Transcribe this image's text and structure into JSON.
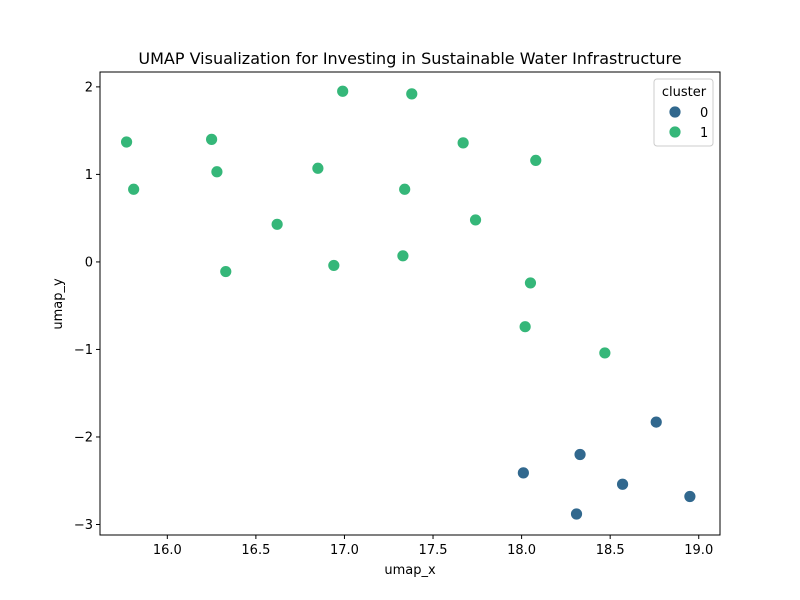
{
  "chart_data": {
    "type": "scatter",
    "title": "UMAP Visualization for Investing in Sustainable Water Infrastructure",
    "xlabel": "umap_x",
    "ylabel": "umap_y",
    "xlim": [
      15.62,
      19.12
    ],
    "ylim": [
      -3.12,
      2.17
    ],
    "xticks": [
      16.0,
      16.5,
      17.0,
      17.5,
      18.0,
      18.5,
      19.0
    ],
    "xtick_labels": [
      "16.0",
      "16.5",
      "17.0",
      "17.5",
      "18.0",
      "18.5",
      "19.0"
    ],
    "yticks": [
      -3,
      -2,
      -1,
      0,
      1,
      2
    ],
    "ytick_labels": [
      "−3",
      "−2",
      "−1",
      "0",
      "1",
      "2"
    ],
    "grid": false,
    "legend": {
      "title": "cluster",
      "placement": "top-right",
      "entries": [
        {
          "label": "0",
          "color": "#31688e"
        },
        {
          "label": "1",
          "color": "#35b779"
        }
      ]
    },
    "series": [
      {
        "name": "0",
        "color": "#31688e",
        "points": [
          {
            "x": 18.01,
            "y": -2.41
          },
          {
            "x": 18.33,
            "y": -2.2
          },
          {
            "x": 18.57,
            "y": -2.54
          },
          {
            "x": 18.76,
            "y": -1.83
          },
          {
            "x": 18.31,
            "y": -2.88
          },
          {
            "x": 18.95,
            "y": -2.68
          }
        ]
      },
      {
        "name": "1",
        "color": "#35b779",
        "points": [
          {
            "x": 15.77,
            "y": 1.37
          },
          {
            "x": 15.81,
            "y": 0.83
          },
          {
            "x": 16.25,
            "y": 1.4
          },
          {
            "x": 16.28,
            "y": 1.03
          },
          {
            "x": 16.33,
            "y": -0.11
          },
          {
            "x": 16.62,
            "y": 0.43
          },
          {
            "x": 16.85,
            "y": 1.07
          },
          {
            "x": 16.94,
            "y": -0.04
          },
          {
            "x": 16.99,
            "y": 1.95
          },
          {
            "x": 17.33,
            "y": 0.07
          },
          {
            "x": 17.34,
            "y": 0.83
          },
          {
            "x": 17.38,
            "y": 1.92
          },
          {
            "x": 17.67,
            "y": 1.36
          },
          {
            "x": 17.74,
            "y": 0.48
          },
          {
            "x": 18.02,
            "y": -0.74
          },
          {
            "x": 18.05,
            "y": -0.24
          },
          {
            "x": 18.08,
            "y": 1.16
          },
          {
            "x": 18.47,
            "y": -1.04
          }
        ]
      }
    ]
  }
}
